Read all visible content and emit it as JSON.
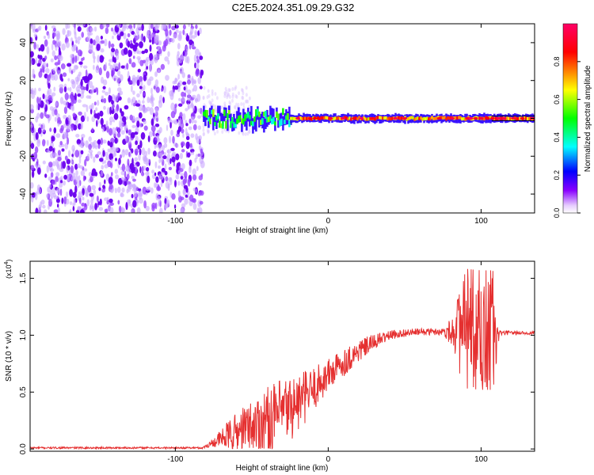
{
  "title": "C2E5.2024.351.09.29.G32",
  "chart_data": [
    {
      "type": "heatmap",
      "name": "spectrogram",
      "xlabel": "Height of straight line (km)",
      "ylabel": "Frequency (Hz)",
      "xlim": [
        -195,
        135
      ],
      "ylim": [
        -50,
        50
      ],
      "xticks": [
        -100,
        0,
        100
      ],
      "yticks": [
        -40,
        -20,
        0,
        20,
        40
      ],
      "noise_region_x": [
        -195,
        -82
      ],
      "signal_center_hz": 0,
      "signal_segments": [
        {
          "x0": -82,
          "x1": -25,
          "freq_jitter_hz": 4,
          "peak_amplitude": 0.55
        },
        {
          "x0": -25,
          "x1": 107,
          "freq_jitter_hz": 0.5,
          "peak_amplitude": 1.0
        },
        {
          "x0": 107,
          "x1": 135,
          "freq_jitter_hz": 0.3,
          "peak_amplitude": 0.9
        }
      ]
    },
    {
      "type": "colorbar",
      "name": "colorbar",
      "label": "Normalized spectral amplitude",
      "range": [
        0,
        1
      ],
      "ticks": [
        0.0,
        0.2,
        0.4,
        0.6,
        0.8
      ],
      "tick_labels": [
        "0.0",
        "0.2",
        "0.4",
        "0.6",
        "0.8"
      ],
      "colormap": [
        "#ffffff",
        "#8800ff",
        "#0000ff",
        "#00ffff",
        "#00ff00",
        "#ffff00",
        "#ff0000",
        "#ff0066"
      ]
    },
    {
      "type": "line",
      "name": "snr",
      "xlabel": "Height of straight line (km)",
      "ylabel": "SNR (10 * v/v)",
      "y_multiplier": "(x10",
      "y_multiplier_exp": "4",
      "y_multiplier_close": ")",
      "xlim": [
        -195,
        135
      ],
      "ylim": [
        -0.02,
        1.65
      ],
      "xticks": [
        -100,
        0,
        100
      ],
      "yticks": [
        0.0,
        0.5,
        1.0,
        1.5
      ],
      "ytick_labels": [
        "0.0",
        "0.5",
        "1.0",
        "1.5"
      ],
      "color": "#e53030",
      "profile_x": [
        -195,
        -82,
        -75,
        -65,
        -50,
        -35,
        -20,
        -10,
        0,
        10,
        20,
        30,
        40,
        50,
        60,
        70,
        85,
        100,
        110,
        120,
        135
      ],
      "profile_y": [
        0.01,
        0.01,
        0.06,
        0.12,
        0.2,
        0.28,
        0.4,
        0.52,
        0.65,
        0.76,
        0.86,
        0.94,
        1.0,
        1.02,
        1.03,
        1.03,
        1.04,
        1.02,
        1.02,
        1.02,
        1.02
      ],
      "noise_envelope_x": [
        -195,
        -82,
        -75,
        -60,
        -40,
        -25,
        -10,
        0,
        20,
        40,
        60,
        75,
        82,
        88,
        100,
        108,
        112,
        135
      ],
      "noise_envelope_y": [
        0.008,
        0.008,
        0.04,
        0.18,
        0.3,
        0.3,
        0.2,
        0.15,
        0.1,
        0.04,
        0.03,
        0.03,
        0.15,
        0.5,
        0.55,
        0.6,
        0.02,
        0.015
      ]
    }
  ]
}
